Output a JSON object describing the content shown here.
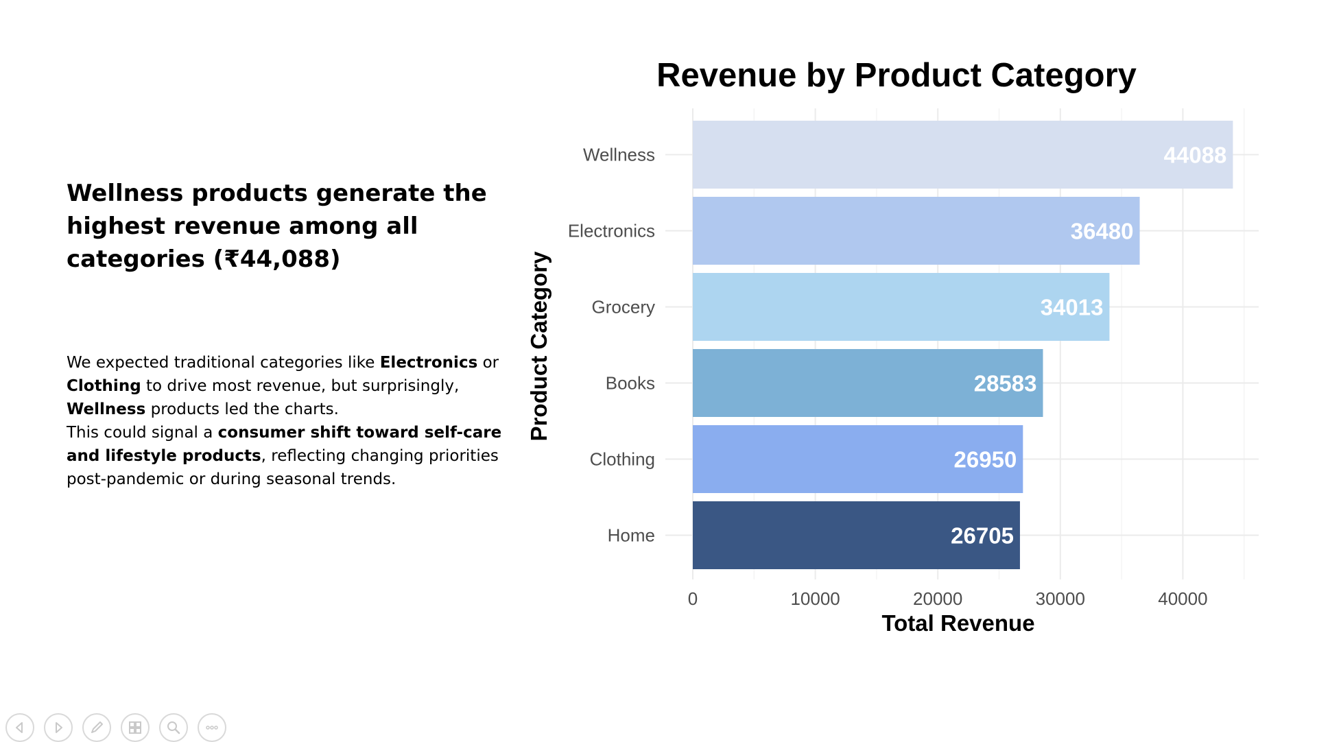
{
  "headline": {
    "lines": [
      "Wellness products generate the",
      "highest revenue among all",
      "categories (₹44,088)"
    ]
  },
  "body": {
    "p1": {
      "t1": "We expected traditional categories like ",
      "b1": "Electronics",
      "t2": " or ",
      "b2": "Clothing",
      "t3": " to drive most revenue, but surprisingly, ",
      "b3": "Wellness",
      "t4": " products led the charts."
    },
    "p2": {
      "t1": "This could signal a ",
      "b1": "consumer shift toward self-care and lifestyle products",
      "t2": ", reflecting changing priorities post-pandemic or during seasonal trends."
    }
  },
  "chart_data": {
    "type": "bar",
    "orientation": "horizontal",
    "title": "Revenue by Product Category",
    "xlabel": "Total Revenue",
    "ylabel": "Product Category",
    "categories": [
      "Wellness",
      "Electronics",
      "Grocery",
      "Books",
      "Clothing",
      "Home"
    ],
    "values": [
      44088,
      36480,
      34013,
      28583,
      26950,
      26705
    ],
    "colors": [
      "#d6dff0",
      "#b0c8ef",
      "#add5f0",
      "#7db1d6",
      "#8aadef",
      "#3a5784"
    ],
    "xticks": [
      0,
      10000,
      20000,
      30000,
      40000
    ],
    "xlim": [
      0,
      46000
    ],
    "grid": true,
    "legend": "none"
  },
  "nav": {
    "icons": [
      "previous-icon",
      "next-icon",
      "pen-icon",
      "slides-icon",
      "zoom-icon",
      "more-icon"
    ]
  }
}
